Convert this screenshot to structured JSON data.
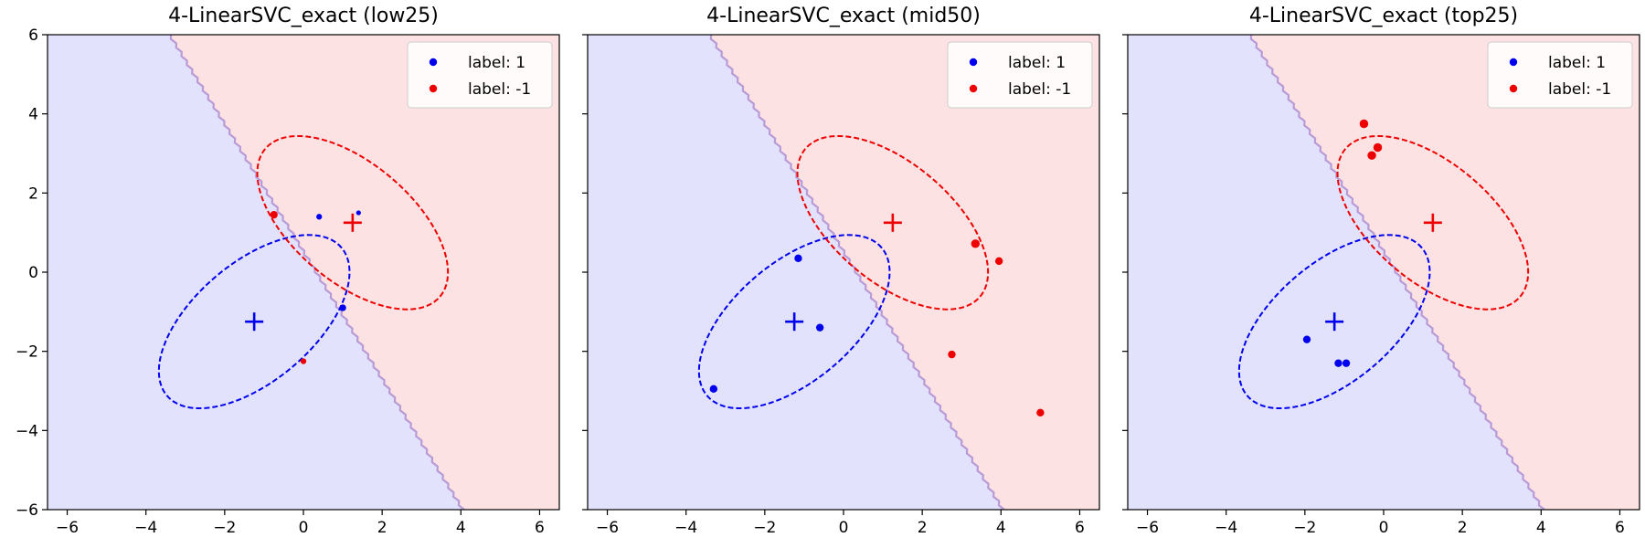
{
  "chart_data": [
    {
      "type": "scatter",
      "title": "4-LinearSVC_exact (low25)",
      "xlim": [
        -6.5,
        6.5
      ],
      "ylim": [
        -6,
        6
      ],
      "xticks": [
        -6,
        -4,
        -2,
        0,
        2,
        4,
        6
      ],
      "yticks": [
        -6,
        -4,
        -2,
        0,
        2,
        4,
        6
      ],
      "xtick_labels": [
        "−6",
        "−4",
        "−2",
        "0",
        "2",
        "4",
        "6"
      ],
      "ytick_labels": [
        "−6",
        "−4",
        "−2",
        "0",
        "2",
        "4",
        "6"
      ],
      "background_regions": {
        "label_1": "#e2e2fd",
        "label_-1": "#fde2e4"
      },
      "decision_boundary": [
        [
          -3.4,
          6
        ],
        [
          4.05,
          -6
        ]
      ],
      "ellipses": [
        {
          "class": "1",
          "color": "#0000ee",
          "center": [
            -1.25,
            -1.25
          ],
          "width": 5.8,
          "height": 3.0,
          "angle_deg": 40
        },
        {
          "class": "-1",
          "color": "#ee0000",
          "center": [
            1.25,
            1.25
          ],
          "width": 5.8,
          "height": 3.0,
          "angle_deg": -40
        }
      ],
      "centers": [
        {
          "class": "1",
          "x": -1.25,
          "y": -1.25,
          "color": "#0000ee"
        },
        {
          "class": "-1",
          "x": 1.25,
          "y": 1.25,
          "color": "#ee0000"
        }
      ],
      "series": [
        {
          "name": "label: 1",
          "color": "#0000ee",
          "points": [
            {
              "x": 0.4,
              "y": 1.4,
              "s": 3
            },
            {
              "x": 1.4,
              "y": 1.5,
              "s": 2.5
            },
            {
              "x": 1.0,
              "y": -0.9,
              "s": 3.5
            }
          ]
        },
        {
          "name": "label: -1",
          "color": "#ee0000",
          "points": [
            {
              "x": -0.75,
              "y": 1.45,
              "s": 4
            },
            {
              "x": 0.0,
              "y": -2.25,
              "s": 3
            }
          ]
        }
      ],
      "legend": {
        "position": "top-right",
        "entries": [
          "label: 1",
          "label: -1"
        ]
      }
    },
    {
      "type": "scatter",
      "title": "4-LinearSVC_exact (mid50)",
      "xlim": [
        -6.5,
        6.5
      ],
      "ylim": [
        -6,
        6
      ],
      "xticks": [
        -6,
        -4,
        -2,
        0,
        2,
        4,
        6
      ],
      "yticks": [
        -6,
        -4,
        -2,
        0,
        2,
        4,
        6
      ],
      "xtick_labels": [
        "−6",
        "−4",
        "−2",
        "0",
        "2",
        "4",
        "6"
      ],
      "ytick_labels": [],
      "background_regions": {
        "label_1": "#e2e2fd",
        "label_-1": "#fde2e4"
      },
      "decision_boundary": [
        [
          -3.4,
          6
        ],
        [
          4.05,
          -6
        ]
      ],
      "ellipses": [
        {
          "class": "1",
          "color": "#0000ee",
          "center": [
            -1.25,
            -1.25
          ],
          "width": 5.8,
          "height": 3.0,
          "angle_deg": 40
        },
        {
          "class": "-1",
          "color": "#ee0000",
          "center": [
            1.25,
            1.25
          ],
          "width": 5.8,
          "height": 3.0,
          "angle_deg": -40
        }
      ],
      "centers": [
        {
          "class": "1",
          "x": -1.25,
          "y": -1.25,
          "color": "#0000ee"
        },
        {
          "class": "-1",
          "x": 1.25,
          "y": 1.25,
          "color": "#ee0000"
        }
      ],
      "series": [
        {
          "name": "label: 1",
          "color": "#0000ee",
          "points": [
            {
              "x": -1.15,
              "y": 0.35,
              "s": 4
            },
            {
              "x": -0.6,
              "y": -1.4,
              "s": 4
            },
            {
              "x": -3.3,
              "y": -2.95,
              "s": 4
            }
          ]
        },
        {
          "name": "label: -1",
          "color": "#ee0000",
          "points": [
            {
              "x": 3.35,
              "y": 0.72,
              "s": 4.5
            },
            {
              "x": 3.95,
              "y": 0.28,
              "s": 4
            },
            {
              "x": 2.75,
              "y": -2.08,
              "s": 4
            },
            {
              "x": 5.0,
              "y": -3.55,
              "s": 4
            }
          ]
        }
      ],
      "legend": {
        "position": "top-right",
        "entries": [
          "label: 1",
          "label: -1"
        ]
      }
    },
    {
      "type": "scatter",
      "title": "4-LinearSVC_exact (top25)",
      "xlim": [
        -6.5,
        6.5
      ],
      "ylim": [
        -6,
        6
      ],
      "xticks": [
        -6,
        -4,
        -2,
        0,
        2,
        4,
        6
      ],
      "yticks": [
        -6,
        -4,
        -2,
        0,
        2,
        4,
        6
      ],
      "xtick_labels": [
        "−6",
        "−4",
        "−2",
        "0",
        "2",
        "4",
        "6"
      ],
      "ytick_labels": [],
      "background_regions": {
        "label_1": "#e2e2fd",
        "label_-1": "#fde2e4"
      },
      "decision_boundary": [
        [
          -3.4,
          6
        ],
        [
          4.05,
          -6
        ]
      ],
      "ellipses": [
        {
          "class": "1",
          "color": "#0000ee",
          "center": [
            -1.25,
            -1.25
          ],
          "width": 5.8,
          "height": 3.0,
          "angle_deg": 40
        },
        {
          "class": "-1",
          "color": "#ee0000",
          "center": [
            1.25,
            1.25
          ],
          "width": 5.8,
          "height": 3.0,
          "angle_deg": -40
        }
      ],
      "centers": [
        {
          "class": "1",
          "x": -1.25,
          "y": -1.25,
          "color": "#0000ee"
        },
        {
          "class": "-1",
          "x": 1.25,
          "y": 1.25,
          "color": "#ee0000"
        }
      ],
      "series": [
        {
          "name": "label: 1",
          "color": "#0000ee",
          "points": [
            {
              "x": -1.95,
              "y": -1.7,
              "s": 4
            },
            {
              "x": -1.15,
              "y": -2.3,
              "s": 4
            },
            {
              "x": -0.95,
              "y": -2.3,
              "s": 4
            }
          ]
        },
        {
          "name": "label: -1",
          "color": "#ee0000",
          "points": [
            {
              "x": -0.5,
              "y": 3.75,
              "s": 4.5
            },
            {
              "x": -0.3,
              "y": 2.95,
              "s": 4.5
            },
            {
              "x": -0.15,
              "y": 3.15,
              "s": 4.5
            }
          ]
        }
      ],
      "legend": {
        "position": "top-right",
        "entries": [
          "label: 1",
          "label: -1"
        ]
      }
    }
  ]
}
